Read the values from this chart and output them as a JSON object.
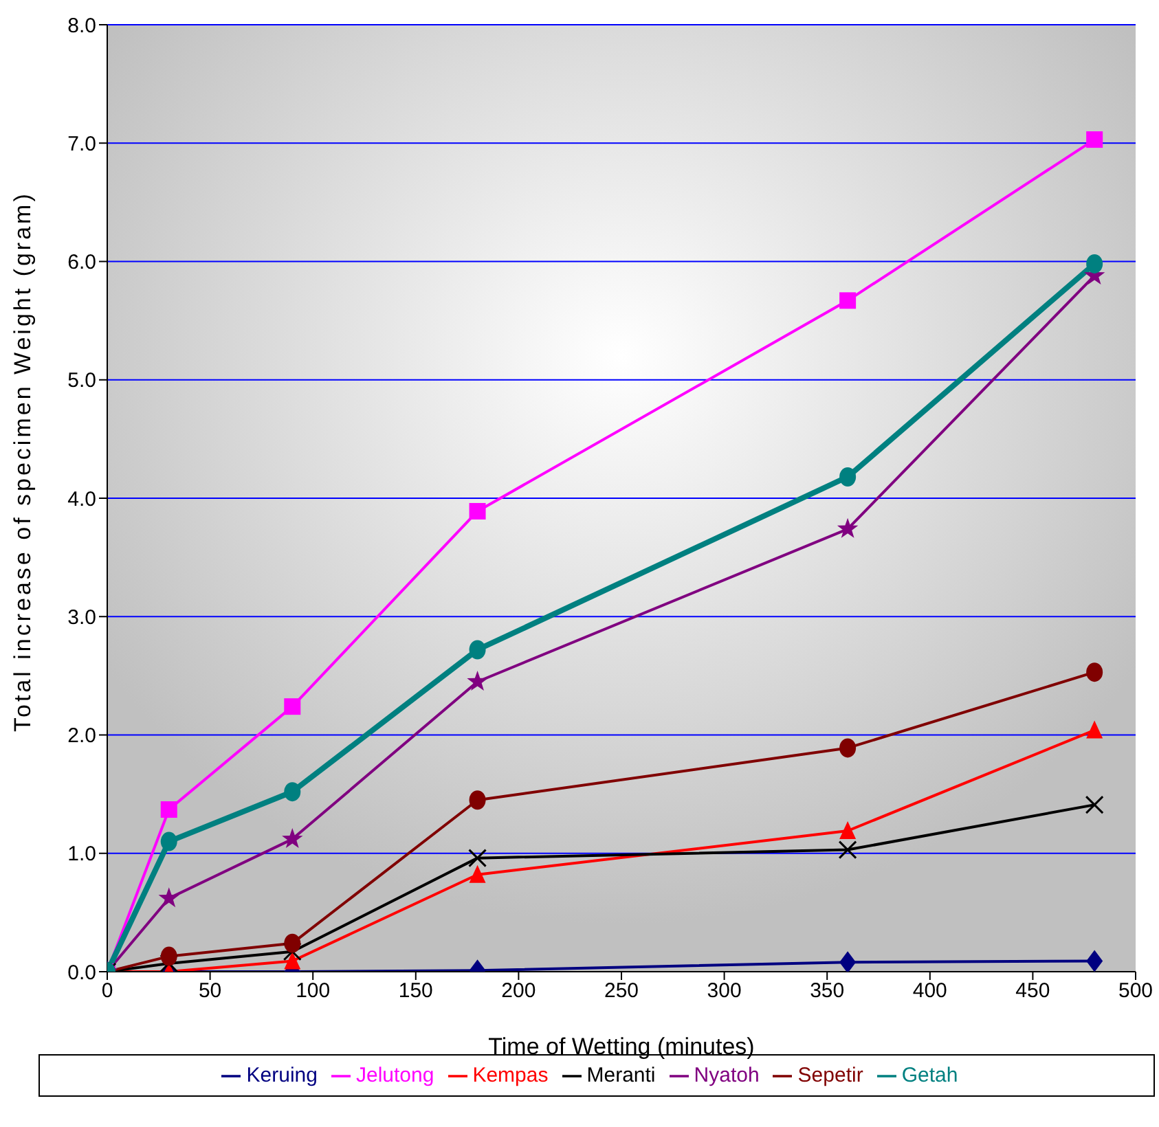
{
  "chart_data": {
    "type": "line",
    "xlabel": "Time of Wetting (minutes)",
    "ylabel": "Total increase of specimen Weight (gram)",
    "x": [
      0,
      30,
      90,
      180,
      360,
      480
    ],
    "series": [
      {
        "name": "Keruing",
        "color": "#000080",
        "marker": "diamond",
        "values": [
          0,
          0,
          0,
          0.01,
          0.08,
          0.09
        ]
      },
      {
        "name": "Jelutong",
        "color": "#ff00ff",
        "marker": "square",
        "values": [
          0,
          1.37,
          2.24,
          3.89,
          5.67,
          7.03
        ]
      },
      {
        "name": "Kempas",
        "color": "#ff0000",
        "marker": "triangle",
        "values": [
          0,
          0,
          0.09,
          0.82,
          1.19,
          2.04
        ]
      },
      {
        "name": "Meranti",
        "color": "#000000",
        "marker": "cross",
        "values": [
          0,
          0.07,
          0.17,
          0.96,
          1.03,
          1.41
        ]
      },
      {
        "name": "Nyatoh",
        "color": "#800080",
        "marker": "star",
        "values": [
          0,
          0.62,
          1.12,
          2.45,
          3.74,
          5.88
        ]
      },
      {
        "name": "Sepetir",
        "color": "#800000",
        "marker": "circle",
        "values": [
          0,
          0.13,
          0.24,
          1.45,
          1.89,
          2.53
        ]
      },
      {
        "name": "Getah",
        "color": "#008080",
        "marker": "circle",
        "values": [
          0,
          1.1,
          1.52,
          2.72,
          4.18,
          5.98
        ]
      }
    ],
    "xlim": [
      0,
      500
    ],
    "xticks": [
      0,
      50,
      100,
      150,
      200,
      250,
      300,
      350,
      400,
      450,
      500
    ],
    "ylim": [
      0,
      8
    ],
    "yticks": [
      {
        "value": 0,
        "label": "0.0"
      },
      {
        "value": 1,
        "label": "1.0"
      },
      {
        "value": 2,
        "label": "2.0"
      },
      {
        "value": 3,
        "label": "3.0"
      },
      {
        "value": 4,
        "label": "4.0"
      },
      {
        "value": 5,
        "label": "5.0"
      },
      {
        "value": 6,
        "label": "6.0"
      },
      {
        "value": 7,
        "label": "7.0"
      },
      {
        "value": 8,
        "label": "8.0"
      }
    ],
    "grid": "y",
    "legend": "bottom"
  }
}
